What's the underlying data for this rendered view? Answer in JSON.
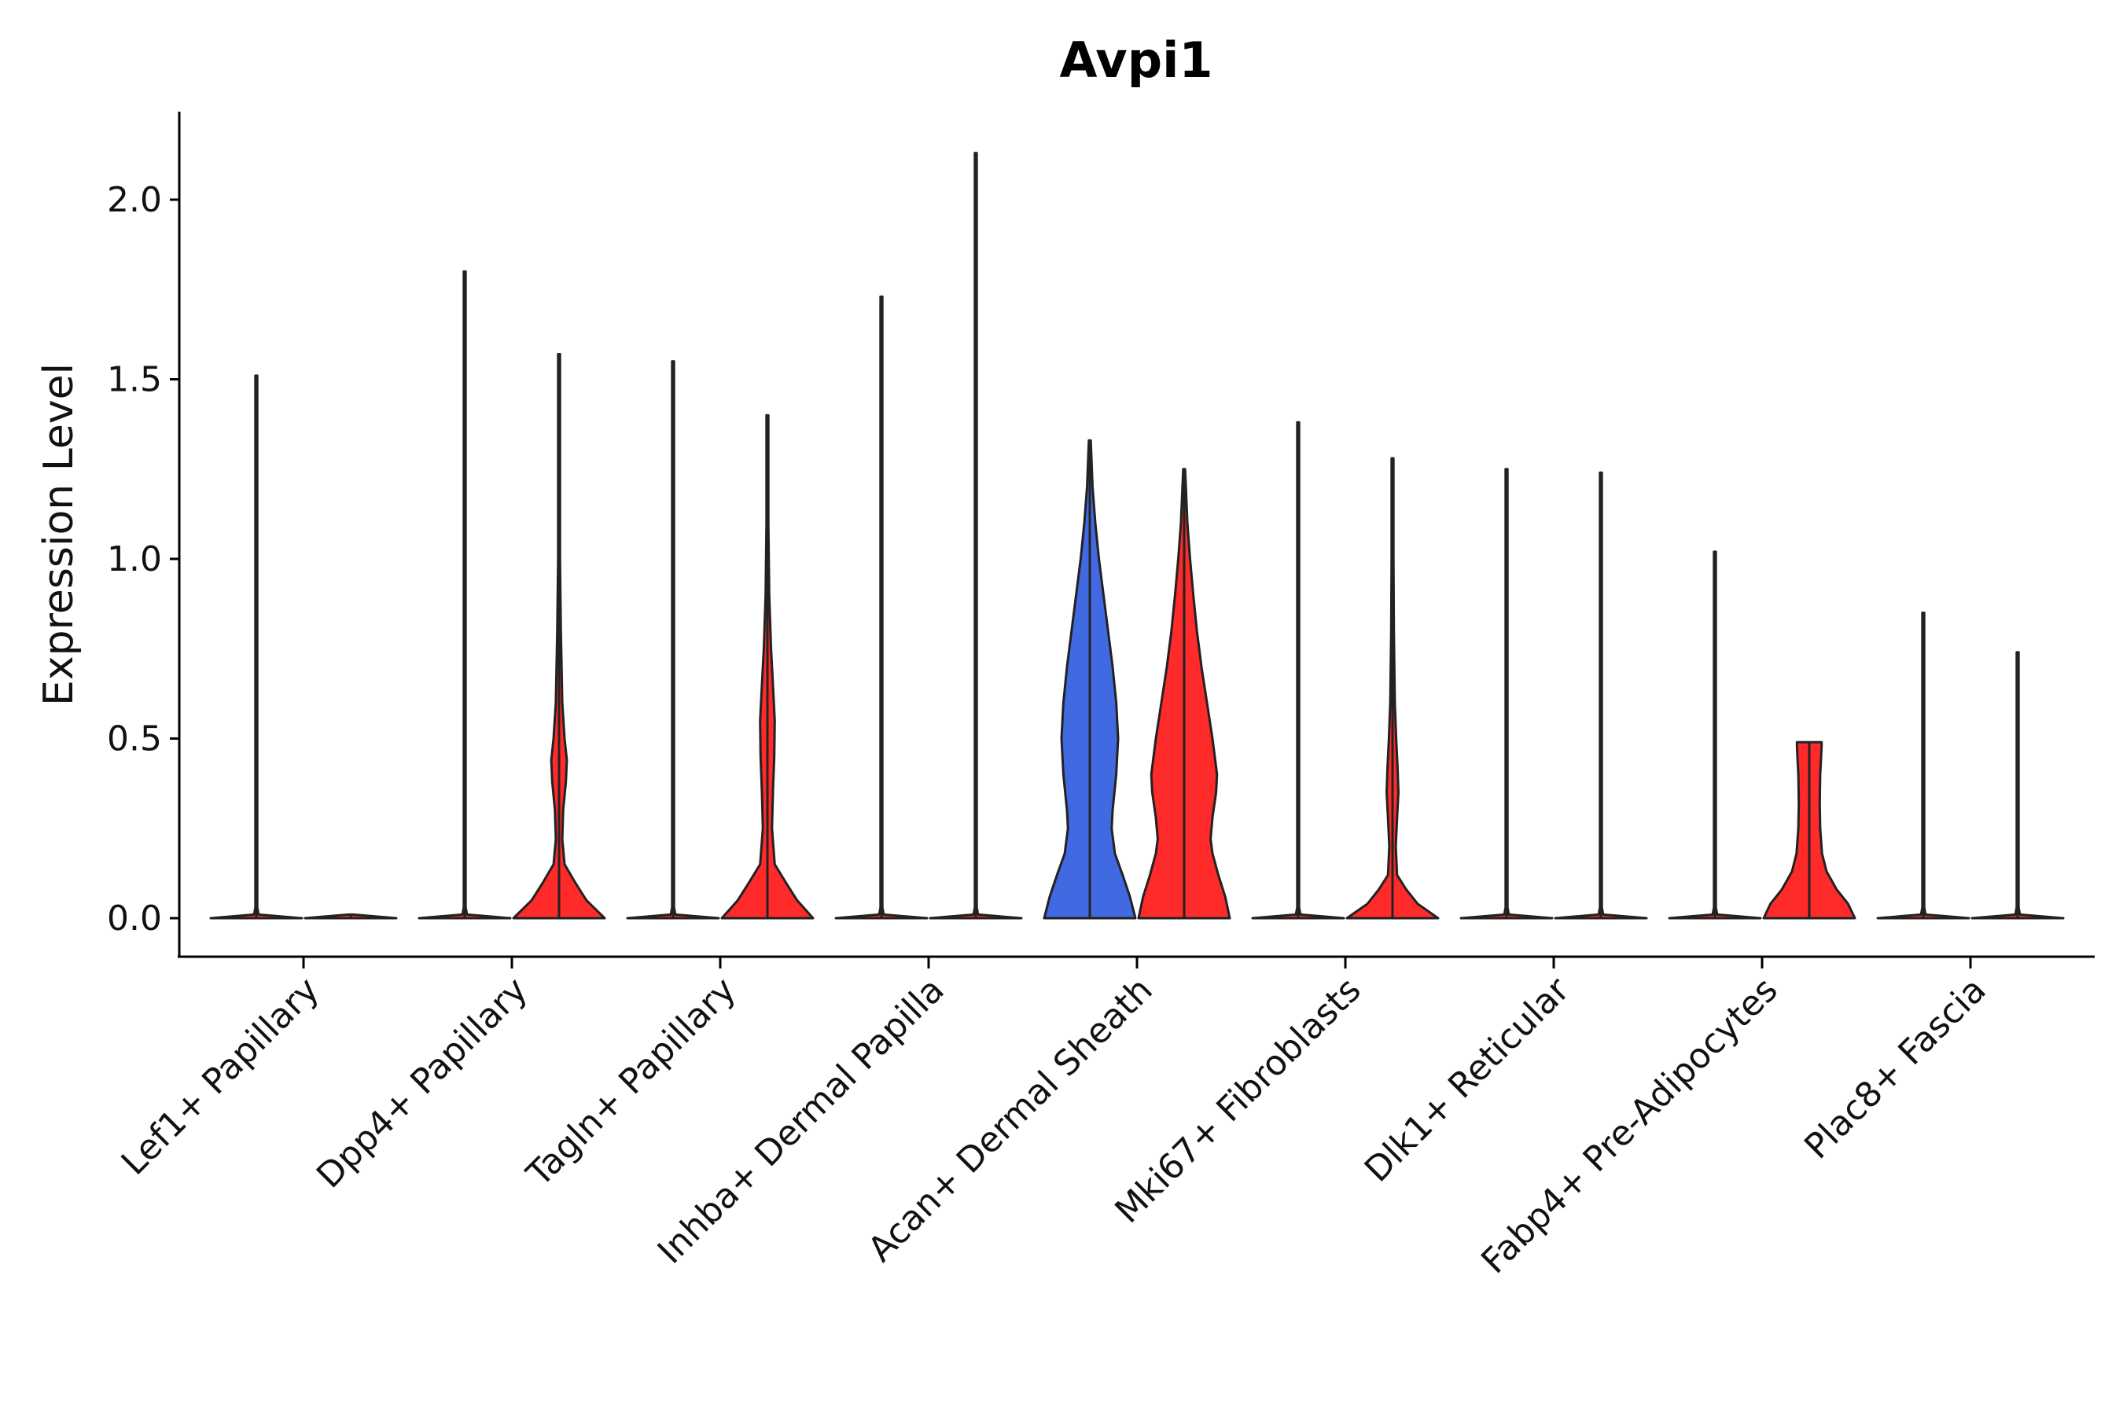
{
  "chart_data": {
    "type": "violin",
    "title": "Avpi1",
    "xlabel": "",
    "ylabel": "Expression Level",
    "ylim": [
      -0.1,
      2.25
    ],
    "yticks": [
      0.0,
      0.5,
      1.0,
      1.5,
      2.0
    ],
    "ytick_labels": [
      "0.0",
      "0.5",
      "1.0",
      "1.5",
      "2.0"
    ],
    "grid": false,
    "legend": "none",
    "series_colors": {
      "blue_group": "#4169e1",
      "red_group": "#ff2a2a",
      "outline": "#222222"
    },
    "categories": [
      "Lef1+ Papillary",
      "Dpp4+ Papillary",
      "Tagln+ Papillary",
      "Inhba+ Dermal Papilla",
      "Acan+ Dermal Sheath",
      "Mki67+ Fibroblasts",
      "Dlk1+ Reticular",
      "Fabp4+ Pre-Adipocytes",
      "Plac8+ Fascia"
    ],
    "violins": [
      {
        "category": "Lef1+ Papillary",
        "group": "left",
        "color": "#ff2a2a",
        "max": 1.51,
        "profile": [
          [
            0,
            1.0
          ],
          [
            0.01,
            0.05
          ],
          [
            0.03,
            0.005
          ],
          [
            1.51,
            0.004
          ]
        ]
      },
      {
        "category": "Lef1+ Papillary",
        "group": "right",
        "color": "#ff2a2a",
        "max": 0.0,
        "profile": [
          [
            0,
            1.0
          ],
          [
            0.01,
            0.05
          ]
        ]
      },
      {
        "category": "Dpp4+ Papillary",
        "group": "left",
        "color": "#ff2a2a",
        "max": 1.8,
        "profile": [
          [
            0,
            1.0
          ],
          [
            0.01,
            0.05
          ],
          [
            0.03,
            0.005
          ],
          [
            1.8,
            0.004
          ]
        ]
      },
      {
        "category": "Dpp4+ Papillary",
        "group": "right",
        "color": "#ff2a2a",
        "max": 1.57,
        "profile": [
          [
            0,
            1.0
          ],
          [
            0.05,
            0.6
          ],
          [
            0.1,
            0.35
          ],
          [
            0.15,
            0.12
          ],
          [
            0.22,
            0.07
          ],
          [
            0.3,
            0.09
          ],
          [
            0.38,
            0.15
          ],
          [
            0.44,
            0.17
          ],
          [
            0.5,
            0.12
          ],
          [
            0.6,
            0.07
          ],
          [
            0.8,
            0.04
          ],
          [
            1.0,
            0.02
          ],
          [
            1.57,
            0.004
          ]
        ]
      },
      {
        "category": "Tagln+ Papillary",
        "group": "left",
        "color": "#ff2a2a",
        "max": 1.55,
        "profile": [
          [
            0,
            1.0
          ],
          [
            0.01,
            0.05
          ],
          [
            0.03,
            0.005
          ],
          [
            1.55,
            0.004
          ]
        ]
      },
      {
        "category": "Tagln+ Papillary",
        "group": "right",
        "color": "#ff2a2a",
        "max": 1.4,
        "profile": [
          [
            0,
            1.0
          ],
          [
            0.05,
            0.65
          ],
          [
            0.1,
            0.4
          ],
          [
            0.15,
            0.16
          ],
          [
            0.25,
            0.1
          ],
          [
            0.35,
            0.12
          ],
          [
            0.45,
            0.15
          ],
          [
            0.55,
            0.16
          ],
          [
            0.65,
            0.12
          ],
          [
            0.75,
            0.08
          ],
          [
            0.9,
            0.04
          ],
          [
            1.1,
            0.02
          ],
          [
            1.4,
            0.004
          ]
        ]
      },
      {
        "category": "Inhba+ Dermal Papilla",
        "group": "left",
        "color": "#ff2a2a",
        "max": 1.73,
        "profile": [
          [
            0,
            1.0
          ],
          [
            0.01,
            0.05
          ],
          [
            0.03,
            0.005
          ],
          [
            1.73,
            0.004
          ]
        ]
      },
      {
        "category": "Inhba+ Dermal Papilla",
        "group": "right",
        "color": "#ff2a2a",
        "max": 2.13,
        "profile": [
          [
            0,
            1.0
          ],
          [
            0.01,
            0.05
          ],
          [
            0.03,
            0.005
          ],
          [
            2.13,
            0.004
          ]
        ]
      },
      {
        "category": "Acan+ Dermal Sheath",
        "group": "left",
        "color": "#4169e1",
        "max": 1.33,
        "profile": [
          [
            0,
            1.0
          ],
          [
            0.06,
            0.88
          ],
          [
            0.12,
            0.72
          ],
          [
            0.18,
            0.55
          ],
          [
            0.25,
            0.48
          ],
          [
            0.3,
            0.5
          ],
          [
            0.4,
            0.58
          ],
          [
            0.5,
            0.62
          ],
          [
            0.6,
            0.58
          ],
          [
            0.7,
            0.5
          ],
          [
            0.8,
            0.4
          ],
          [
            0.9,
            0.3
          ],
          [
            1.0,
            0.2
          ],
          [
            1.1,
            0.12
          ],
          [
            1.2,
            0.06
          ],
          [
            1.33,
            0.02
          ]
        ]
      },
      {
        "category": "Acan+ Dermal Sheath",
        "group": "right",
        "color": "#ff2a2a",
        "max": 1.25,
        "profile": [
          [
            0,
            1.0
          ],
          [
            0.06,
            0.9
          ],
          [
            0.12,
            0.75
          ],
          [
            0.18,
            0.62
          ],
          [
            0.22,
            0.58
          ],
          [
            0.28,
            0.62
          ],
          [
            0.35,
            0.7
          ],
          [
            0.4,
            0.72
          ],
          [
            0.5,
            0.62
          ],
          [
            0.6,
            0.5
          ],
          [
            0.7,
            0.38
          ],
          [
            0.8,
            0.28
          ],
          [
            0.9,
            0.2
          ],
          [
            1.0,
            0.13
          ],
          [
            1.1,
            0.07
          ],
          [
            1.25,
            0.02
          ]
        ]
      },
      {
        "category": "Mki67+ Fibroblasts",
        "group": "left",
        "color": "#ff2a2a",
        "max": 1.38,
        "profile": [
          [
            0,
            1.0
          ],
          [
            0.01,
            0.05
          ],
          [
            0.03,
            0.005
          ],
          [
            1.38,
            0.004
          ]
        ]
      },
      {
        "category": "Mki67+ Fibroblasts",
        "group": "right",
        "color": "#ff2a2a",
        "max": 1.28,
        "profile": [
          [
            0,
            1.0
          ],
          [
            0.04,
            0.55
          ],
          [
            0.08,
            0.3
          ],
          [
            0.12,
            0.1
          ],
          [
            0.2,
            0.07
          ],
          [
            0.28,
            0.1
          ],
          [
            0.35,
            0.13
          ],
          [
            0.42,
            0.11
          ],
          [
            0.5,
            0.08
          ],
          [
            0.6,
            0.05
          ],
          [
            0.8,
            0.03
          ],
          [
            1.0,
            0.015
          ],
          [
            1.28,
            0.004
          ]
        ]
      },
      {
        "category": "Dlk1+ Reticular",
        "group": "left",
        "color": "#ff2a2a",
        "max": 1.25,
        "profile": [
          [
            0,
            1.0
          ],
          [
            0.01,
            0.05
          ],
          [
            0.03,
            0.005
          ],
          [
            1.25,
            0.004
          ]
        ]
      },
      {
        "category": "Dlk1+ Reticular",
        "group": "right",
        "color": "#ff2a2a",
        "max": 1.24,
        "profile": [
          [
            0,
            1.0
          ],
          [
            0.01,
            0.05
          ],
          [
            0.03,
            0.005
          ],
          [
            1.24,
            0.004
          ]
        ]
      },
      {
        "category": "Fabp4+ Pre-Adipocytes",
        "group": "left",
        "color": "#ff2a2a",
        "max": 1.02,
        "profile": [
          [
            0,
            1.0
          ],
          [
            0.01,
            0.05
          ],
          [
            0.03,
            0.005
          ],
          [
            1.02,
            0.004
          ]
        ]
      },
      {
        "category": "Fabp4+ Pre-Adipocytes",
        "group": "right",
        "color": "#ff2a2a",
        "max": 0.49,
        "profile": [
          [
            0,
            1.0
          ],
          [
            0.04,
            0.85
          ],
          [
            0.08,
            0.6
          ],
          [
            0.13,
            0.38
          ],
          [
            0.18,
            0.28
          ],
          [
            0.25,
            0.24
          ],
          [
            0.32,
            0.23
          ],
          [
            0.4,
            0.24
          ],
          [
            0.45,
            0.26
          ],
          [
            0.48,
            0.27
          ],
          [
            0.49,
            0.27
          ]
        ]
      },
      {
        "category": "Plac8+ Fascia",
        "group": "left",
        "color": "#ff2a2a",
        "max": 0.85,
        "profile": [
          [
            0,
            1.0
          ],
          [
            0.01,
            0.05
          ],
          [
            0.03,
            0.005
          ],
          [
            0.85,
            0.004
          ]
        ]
      },
      {
        "category": "Plac8+ Fascia",
        "group": "right",
        "color": "#ff2a2a",
        "max": 0.74,
        "profile": [
          [
            0,
            1.0
          ],
          [
            0.01,
            0.05
          ],
          [
            0.03,
            0.005
          ],
          [
            0.74,
            0.004
          ]
        ]
      }
    ]
  }
}
